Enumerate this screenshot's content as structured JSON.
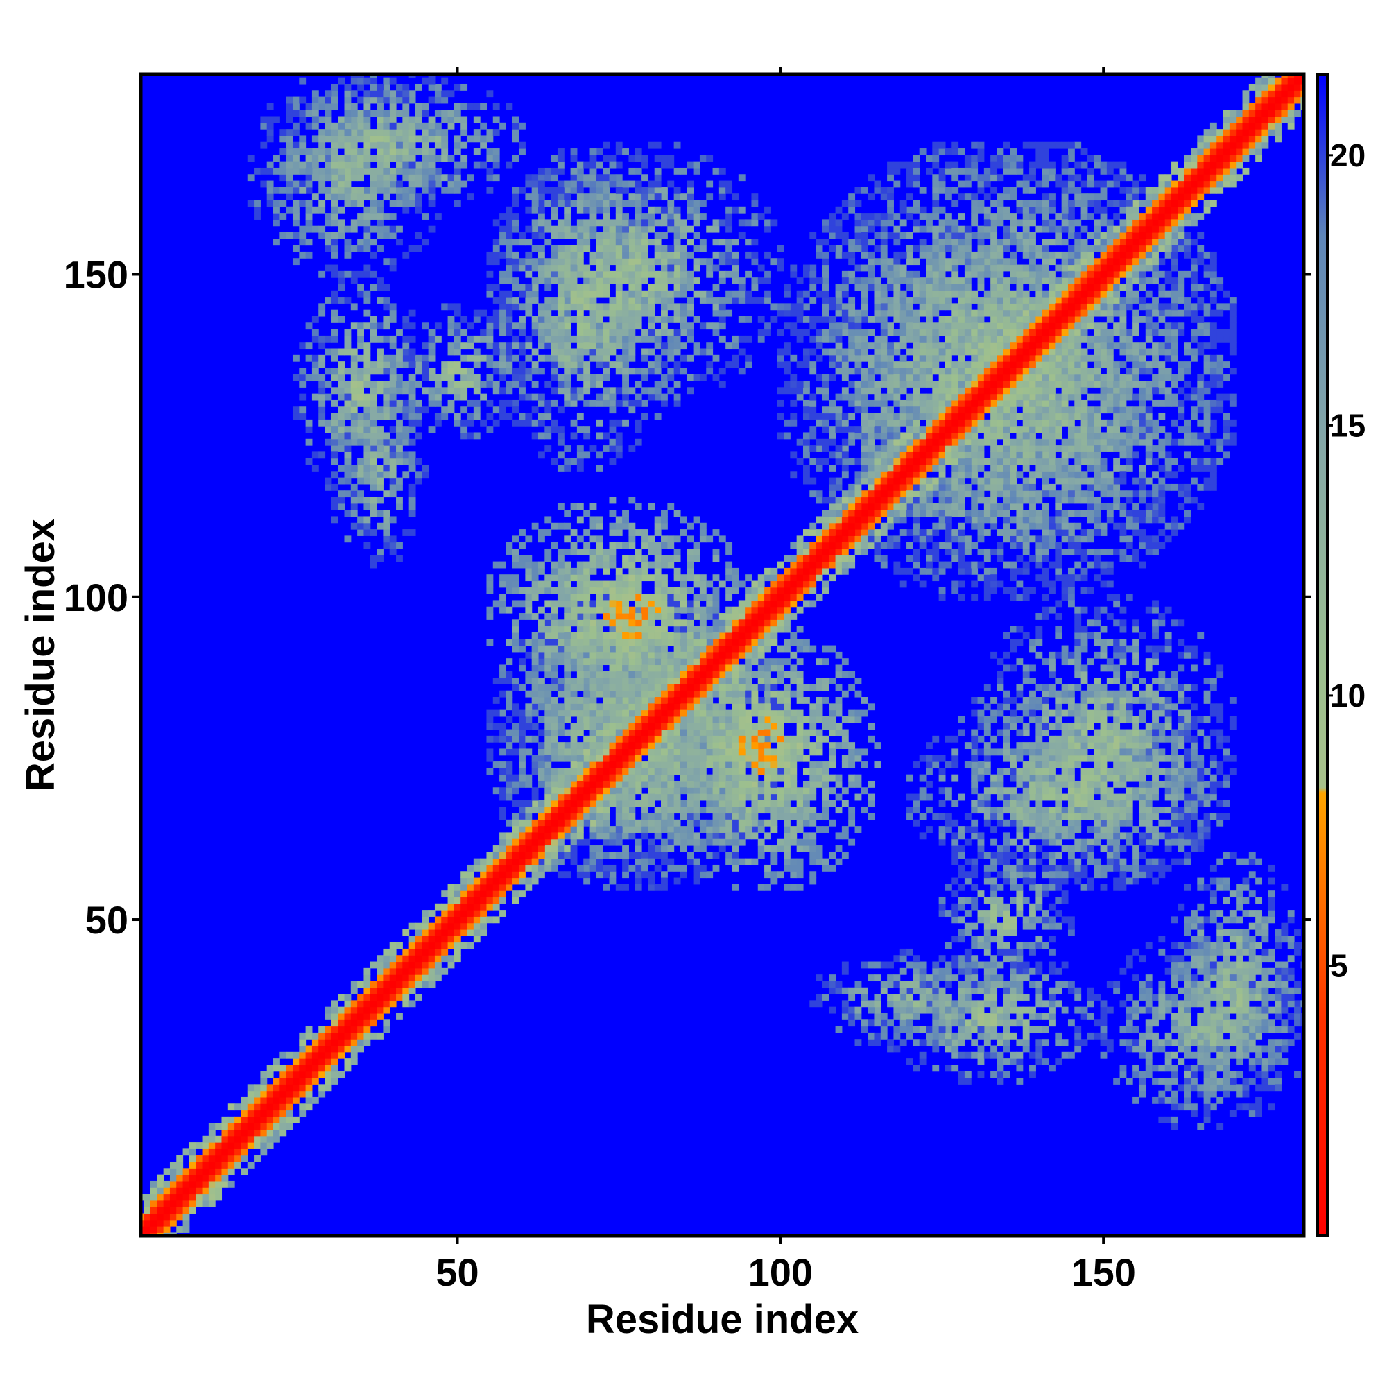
{
  "chart_data": {
    "type": "heatmap",
    "title": "",
    "xlabel": "Residue index",
    "ylabel": "Residue index",
    "xlim": [
      1,
      181
    ],
    "ylim": [
      1,
      181
    ],
    "x_ticks": [
      50,
      100,
      150
    ],
    "y_ticks": [
      50,
      100,
      150
    ],
    "colorbar": {
      "range": [
        0,
        21.5
      ],
      "ticks": [
        5,
        10,
        15,
        20
      ],
      "stops": [
        {
          "value": 0,
          "color": "#ff0000"
        },
        {
          "value": 4,
          "color": "#ff3300"
        },
        {
          "value": 8.2,
          "color": "#ffa500"
        },
        {
          "value": 8.3,
          "color": "#a8c08a"
        },
        {
          "value": 10.5,
          "color": "#9cbf8f"
        },
        {
          "value": 14.5,
          "color": "#86a9a6"
        },
        {
          "value": 18.5,
          "color": "#5f86b8"
        },
        {
          "value": 21.5,
          "color": "#0000ff"
        }
      ]
    },
    "background_color": "#0000ff",
    "diagonal_band": {
      "distance_range": [
        0,
        4
      ],
      "color_stops": [
        "#ff0000",
        "#ff6a00",
        "#ffa500"
      ]
    },
    "contact_regions": [
      {
        "x": [
          100,
          170
        ],
        "y": [
          100,
          170
        ],
        "distance_range": [
          8,
          20
        ]
      },
      {
        "x": [
          55,
          100
        ],
        "y": [
          55,
          100
        ],
        "distance_range": [
          8,
          20
        ]
      },
      {
        "x": [
          65,
          90
        ],
        "y": [
          85,
          110
        ],
        "distance_range": [
          5,
          15
        ]
      },
      {
        "x": [
          80,
          115
        ],
        "y": [
          55,
          95
        ],
        "distance_range": [
          6,
          18
        ]
      },
      {
        "x": [
          130,
          170
        ],
        "y": [
          55,
          100
        ],
        "distance_range": [
          8,
          20
        ]
      },
      {
        "x": [
          125,
          145
        ],
        "y": [
          40,
          60
        ],
        "distance_range": [
          8,
          20
        ]
      },
      {
        "x": [
          160,
          181
        ],
        "y": [
          20,
          60
        ],
        "distance_range": [
          8,
          20
        ]
      },
      {
        "x": [
          18,
          48
        ],
        "y": [
          150,
          181
        ],
        "distance_range": [
          10,
          20
        ]
      },
      {
        "x": [
          55,
          85
        ],
        "y": [
          120,
          170
        ],
        "distance_range": [
          8,
          20
        ]
      },
      {
        "x": [
          25,
          45
        ],
        "y": [
          115,
          150
        ],
        "distance_range": [
          8,
          20
        ]
      },
      {
        "x": [
          105,
          135
        ],
        "y": [
          30,
          45
        ],
        "distance_range": [
          10,
          20
        ]
      }
    ]
  }
}
